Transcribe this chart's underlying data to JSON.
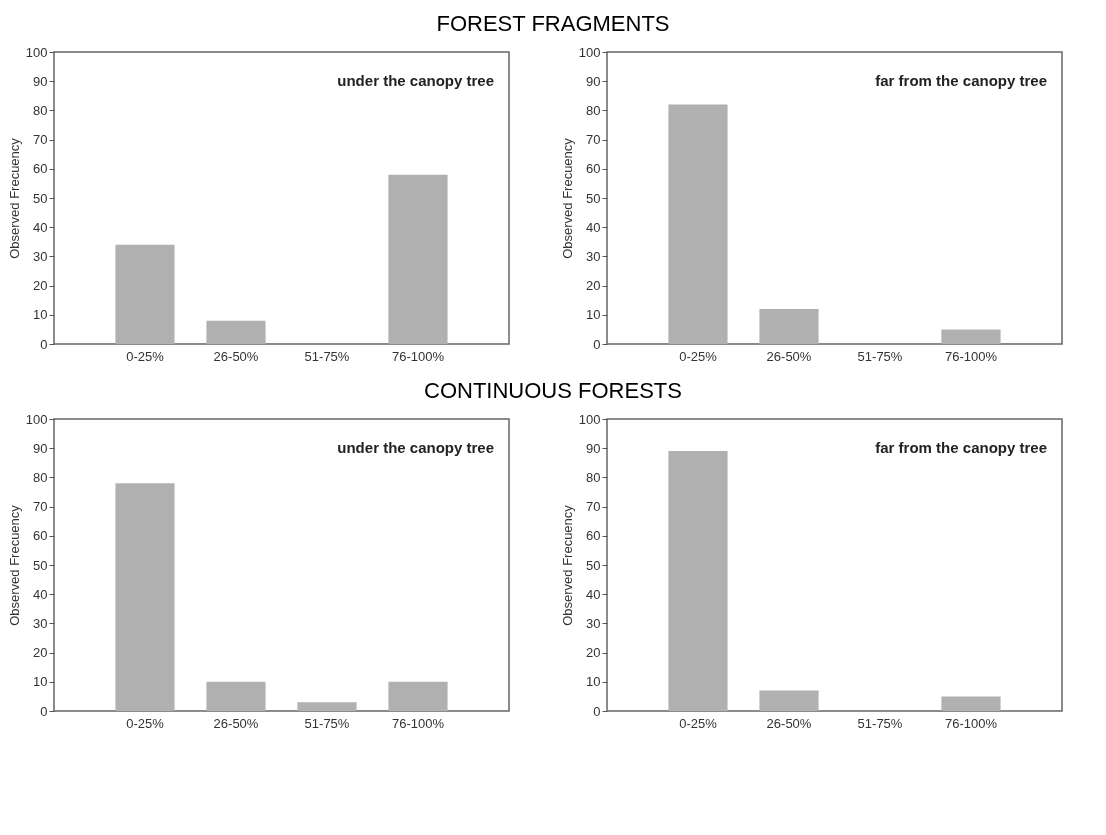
{
  "chart_data": [
    {
      "type": "bar",
      "title": "FOREST FRAGMENTS",
      "ylabel": "Observed Frecuency",
      "annotations": [
        "under the canopy tree"
      ],
      "categories": [
        "0-25%",
        "26-50%",
        "51-75%",
        "76-100%"
      ],
      "values": [
        34,
        8,
        0,
        58
      ],
      "color": "#b0b0b0",
      "ylim": [
        0,
        100
      ],
      "yticks": [
        0,
        10,
        20,
        30,
        40,
        50,
        60,
        70,
        80,
        90,
        100
      ],
      "grid": false
    },
    {
      "type": "bar",
      "ylabel": "Observed Frecuency",
      "annotations": [
        "far from the canopy tree"
      ],
      "categories": [
        "0-25%",
        "26-50%",
        "51-75%",
        "76-100%"
      ],
      "values": [
        82,
        12,
        0,
        5
      ],
      "color": "#b0b0b0",
      "ylim": [
        0,
        100
      ],
      "yticks": [
        0,
        10,
        20,
        30,
        40,
        50,
        60,
        70,
        80,
        90,
        100
      ],
      "grid": false
    },
    {
      "type": "bar",
      "title": "CONTINUOUS FORESTS",
      "ylabel": "Observed Frecuency",
      "annotations": [
        "under the canopy tree"
      ],
      "categories": [
        "0-25%",
        "26-50%",
        "51-75%",
        "76-100%"
      ],
      "values": [
        78,
        10,
        3,
        10
      ],
      "color": "#b0b0b0",
      "ylim": [
        0,
        100
      ],
      "yticks": [
        0,
        10,
        20,
        30,
        40,
        50,
        60,
        70,
        80,
        90,
        100
      ],
      "grid": false
    },
    {
      "type": "bar",
      "ylabel": "Observed Frecuency",
      "annotations": [
        "far from the canopy tree"
      ],
      "categories": [
        "0-25%",
        "26-50%",
        "51-75%",
        "76-100%"
      ],
      "values": [
        89,
        7,
        0,
        5
      ],
      "color": "#b0b0b0",
      "ylim": [
        0,
        100
      ],
      "yticks": [
        0,
        10,
        20,
        30,
        40,
        50,
        60,
        70,
        80,
        90,
        100
      ],
      "grid": false
    }
  ]
}
